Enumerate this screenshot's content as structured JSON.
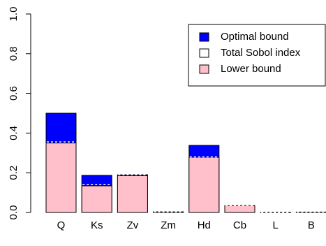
{
  "chart_data": {
    "type": "bar",
    "categories": [
      "Q",
      "Ks",
      "Zv",
      "Zm",
      "Hd",
      "Cb",
      "L",
      "B"
    ],
    "series": [
      {
        "name": "Optimal bound",
        "color": "#0000ff",
        "values": [
          0.5,
          0.187,
          0.19,
          0.003,
          0.338,
          0.035,
          0.001,
          0.002
        ]
      },
      {
        "name": "Total Sobol index",
        "color": "#ffffff",
        "values": [
          0.355,
          0.14,
          0.19,
          0.003,
          0.28,
          0.035,
          0.001,
          0.002
        ]
      },
      {
        "name": "Lower bound",
        "color": "#ffc0cb",
        "values": [
          0.35,
          0.134,
          0.185,
          0.003,
          0.278,
          0.035,
          0.001,
          0.002
        ]
      }
    ],
    "ylim": [
      0,
      1
    ],
    "yticks": [
      {
        "value": 0,
        "label": "0.0"
      },
      {
        "value": 0.2,
        "label": "0.2"
      },
      {
        "value": 0.4,
        "label": "0.4"
      },
      {
        "value": 0.6,
        "label": "0.6"
      },
      {
        "value": 0.8,
        "label": "0.8"
      },
      {
        "value": 1,
        "label": "1.0"
      }
    ],
    "legend": "top-right"
  }
}
